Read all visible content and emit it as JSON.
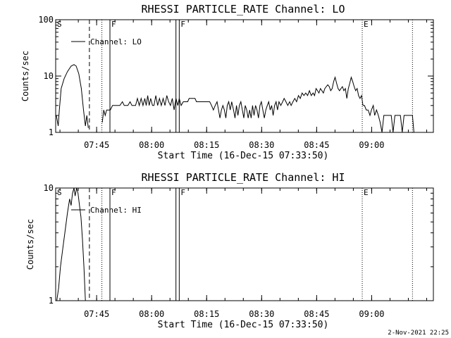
{
  "footer": {
    "timestamp": "2-Nov-2021 22:25"
  },
  "chart_data": [
    {
      "type": "line",
      "title": "RHESSI PARTICLE_RATE Channel: LO",
      "xlabel": "Start Time (16-Dec-15 07:33:50)",
      "ylabel": "Counts/sec",
      "yscale": "log",
      "ylim": [
        1,
        100
      ],
      "xlim_minutes": [
        0,
        103
      ],
      "y_ticks": [
        {
          "value": 1,
          "label": "1"
        },
        {
          "value": 10,
          "label": "10"
        },
        {
          "value": 100,
          "label": "100"
        }
      ],
      "x_ticks": [
        {
          "minutes": 11.17,
          "label": "07:45"
        },
        {
          "minutes": 26.17,
          "label": "08:00"
        },
        {
          "minutes": 41.17,
          "label": "08:15"
        },
        {
          "minutes": 56.17,
          "label": "08:30"
        },
        {
          "minutes": 71.17,
          "label": "08:45"
        },
        {
          "minutes": 86.17,
          "label": "09:00"
        }
      ],
      "legend": {
        "label": "Channel: LO",
        "position": "top-left"
      },
      "markers": [
        {
          "minutes": 0,
          "style": "solid",
          "label": "S"
        },
        {
          "minutes": 9.2,
          "style": "dashed",
          "label": ""
        },
        {
          "minutes": 12.6,
          "style": "dotted",
          "label": ""
        },
        {
          "minutes": 14.8,
          "style": "solid",
          "label": "F"
        },
        {
          "minutes": 32.8,
          "style": "solid",
          "label": ""
        },
        {
          "minutes": 33.7,
          "style": "solid",
          "label": "F"
        },
        {
          "minutes": 83.6,
          "style": "dotted",
          "label": "E"
        },
        {
          "minutes": 97.3,
          "style": "dotted",
          "label": ""
        }
      ],
      "series": [
        {
          "name": "Channel: LO",
          "segments": [
            [
              [
                0.2,
                2.0
              ],
              [
                0.7,
                1.3
              ],
              [
                1.0,
                2.5
              ],
              [
                1.5,
                6.0
              ],
              [
                2.3,
                9.0
              ],
              [
                3.2,
                12.0
              ],
              [
                4.2,
                15.0
              ],
              [
                5.0,
                16.0
              ],
              [
                5.6,
                15.0
              ],
              [
                6.3,
                11.0
              ],
              [
                7.0,
                6.0
              ],
              [
                7.6,
                2.5
              ],
              [
                8.1,
                1.3
              ],
              [
                8.5,
                2.0
              ],
              [
                8.9,
                1.2
              ]
            ],
            [
              [
                12.7,
                1.5
              ],
              [
                13.1,
                2.5
              ],
              [
                13.5,
                2.0
              ],
              [
                13.9,
                2.5
              ],
              [
                14.3,
                2.5
              ],
              [
                14.9,
                2.5
              ],
              [
                15.5,
                3.0
              ],
              [
                17.5,
                3.0
              ],
              [
                18.2,
                3.5
              ],
              [
                18.7,
                3.0
              ],
              [
                19.7,
                3.0
              ],
              [
                20.3,
                3.5
              ],
              [
                20.8,
                3.0
              ],
              [
                21.8,
                3.0
              ],
              [
                22.3,
                4.0
              ],
              [
                22.8,
                3.0
              ],
              [
                23.3,
                4.0
              ],
              [
                23.8,
                3.0
              ],
              [
                24.3,
                4.0
              ],
              [
                24.7,
                3.0
              ],
              [
                25.1,
                4.5
              ],
              [
                25.5,
                3.0
              ],
              [
                25.9,
                4.0
              ],
              [
                26.4,
                3.0
              ],
              [
                26.8,
                3.0
              ],
              [
                27.3,
                4.5
              ],
              [
                27.8,
                3.0
              ],
              [
                28.3,
                4.0
              ],
              [
                28.8,
                3.0
              ],
              [
                29.3,
                4.0
              ],
              [
                29.8,
                3.0
              ],
              [
                30.3,
                4.5
              ],
              [
                30.8,
                3.5
              ],
              [
                31.3,
                3.0
              ],
              [
                31.8,
                4.0
              ],
              [
                32.3,
                2.5
              ],
              [
                32.8,
                4.0
              ],
              [
                33.3,
                3.0
              ],
              [
                33.7,
                4.0
              ],
              [
                34.2,
                3.0
              ],
              [
                34.8,
                3.5
              ],
              [
                36.0,
                3.5
              ],
              [
                36.4,
                4.0
              ],
              [
                38.0,
                4.0
              ],
              [
                38.4,
                3.5
              ],
              [
                42.0,
                3.5
              ],
              [
                42.5,
                3.0
              ],
              [
                43.0,
                2.5
              ],
              [
                43.5,
                3.0
              ],
              [
                44.0,
                3.5
              ],
              [
                44.4,
                2.5
              ],
              [
                44.8,
                1.8
              ],
              [
                45.2,
                2.5
              ],
              [
                45.6,
                3.0
              ],
              [
                46.0,
                2.5
              ],
              [
                46.4,
                1.8
              ],
              [
                46.8,
                3.0
              ],
              [
                47.2,
                3.5
              ],
              [
                47.6,
                2.5
              ],
              [
                48.0,
                3.5
              ],
              [
                48.5,
                2.5
              ],
              [
                48.9,
                1.8
              ],
              [
                49.3,
                3.0
              ],
              [
                49.7,
                2.0
              ],
              [
                50.1,
                3.0
              ],
              [
                50.5,
                3.5
              ],
              [
                50.9,
                2.5
              ],
              [
                51.3,
                1.8
              ],
              [
                51.7,
                3.0
              ],
              [
                52.1,
                2.5
              ],
              [
                52.5,
                1.8
              ],
              [
                52.9,
                2.5
              ],
              [
                53.3,
                1.8
              ],
              [
                53.7,
                3.0
              ],
              [
                54.1,
                2.0
              ],
              [
                54.5,
                3.0
              ],
              [
                54.9,
                2.5
              ],
              [
                55.3,
                1.8
              ],
              [
                55.7,
                3.0
              ],
              [
                56.1,
                3.5
              ],
              [
                56.5,
                2.5
              ],
              [
                56.9,
                1.8
              ],
              [
                57.3,
                2.5
              ],
              [
                57.7,
                3.0
              ],
              [
                58.1,
                3.5
              ],
              [
                58.5,
                2.5
              ],
              [
                58.9,
                3.0
              ],
              [
                59.3,
                2.0
              ],
              [
                59.7,
                3.0
              ],
              [
                60.1,
                3.5
              ],
              [
                60.5,
                2.5
              ],
              [
                60.9,
                3.5
              ],
              [
                61.4,
                3.0
              ],
              [
                61.9,
                3.5
              ],
              [
                62.3,
                4.0
              ],
              [
                62.8,
                3.5
              ],
              [
                63.3,
                3.0
              ],
              [
                63.8,
                3.5
              ],
              [
                64.2,
                3.0
              ],
              [
                64.7,
                3.5
              ],
              [
                65.2,
                4.0
              ],
              [
                65.7,
                3.5
              ],
              [
                66.2,
                4.5
              ],
              [
                66.7,
                4.0
              ],
              [
                67.2,
                5.0
              ],
              [
                67.7,
                4.5
              ],
              [
                68.2,
                5.0
              ],
              [
                68.7,
                4.5
              ],
              [
                69.2,
                5.5
              ],
              [
                69.7,
                4.5
              ],
              [
                70.2,
                5.0
              ],
              [
                70.6,
                4.5
              ],
              [
                71.0,
                6.0
              ],
              [
                71.4,
                5.5
              ],
              [
                71.8,
                5.0
              ],
              [
                72.2,
                6.0
              ],
              [
                72.6,
                5.5
              ],
              [
                73.0,
                5.0
              ],
              [
                73.4,
                6.0
              ],
              [
                73.8,
                6.5
              ],
              [
                74.2,
                7.0
              ],
              [
                74.6,
                6.5
              ],
              [
                75.0,
                5.5
              ],
              [
                75.4,
                6.0
              ],
              [
                75.8,
                8.0
              ],
              [
                76.2,
                9.5
              ],
              [
                76.6,
                7.5
              ],
              [
                77.0,
                6.0
              ],
              [
                77.4,
                5.5
              ],
              [
                77.8,
                6.0
              ],
              [
                78.2,
                6.5
              ],
              [
                78.6,
                5.5
              ],
              [
                79.0,
                6.0
              ],
              [
                79.4,
                4.0
              ],
              [
                79.8,
                6.0
              ],
              [
                80.2,
                7.5
              ],
              [
                80.6,
                9.5
              ],
              [
                81.0,
                8.0
              ],
              [
                81.4,
                6.5
              ],
              [
                81.8,
                5.5
              ],
              [
                82.2,
                6.0
              ],
              [
                82.6,
                4.5
              ],
              [
                83.0,
                4.0
              ],
              [
                83.4,
                4.5
              ],
              [
                83.8,
                3.0
              ],
              [
                84.2,
                3.0
              ],
              [
                84.7,
                2.5
              ],
              [
                85.2,
                2.5
              ],
              [
                85.7,
                2.0
              ],
              [
                86.1,
                2.5
              ],
              [
                86.6,
                3.0
              ],
              [
                87.0,
                2.0
              ],
              [
                87.5,
                2.5
              ],
              [
                88.0,
                2.0
              ],
              [
                88.5,
                1.5
              ],
              [
                89.0,
                1.0
              ],
              [
                89.5,
                2.0
              ],
              [
                91.5,
                2.0
              ],
              [
                92.0,
                1.0
              ],
              [
                92.5,
                2.0
              ],
              [
                94.0,
                2.0
              ],
              [
                94.5,
                1.0
              ],
              [
                95.0,
                2.0
              ],
              [
                97.3,
                2.0
              ],
              [
                97.7,
                1.0
              ]
            ]
          ]
        }
      ]
    },
    {
      "type": "line",
      "title": "RHESSI PARTICLE_RATE Channel: HI",
      "xlabel": "Start Time (16-Dec-15 07:33:50)",
      "ylabel": "Counts/sec",
      "yscale": "log",
      "ylim": [
        1,
        10
      ],
      "xlim_minutes": [
        0,
        103
      ],
      "y_ticks": [
        {
          "value": 1,
          "label": "1"
        },
        {
          "value": 10,
          "label": "10"
        }
      ],
      "x_ticks": [
        {
          "minutes": 11.17,
          "label": "07:45"
        },
        {
          "minutes": 26.17,
          "label": "08:00"
        },
        {
          "minutes": 41.17,
          "label": "08:15"
        },
        {
          "minutes": 56.17,
          "label": "08:30"
        },
        {
          "minutes": 71.17,
          "label": "08:45"
        },
        {
          "minutes": 86.17,
          "label": "09:00"
        }
      ],
      "legend": {
        "label": "Channel: HI",
        "position": "top-left"
      },
      "markers": [
        {
          "minutes": 0,
          "style": "solid",
          "label": "S"
        },
        {
          "minutes": 9.2,
          "style": "dashed",
          "label": ""
        },
        {
          "minutes": 12.6,
          "style": "dotted",
          "label": ""
        },
        {
          "minutes": 14.8,
          "style": "solid",
          "label": "F"
        },
        {
          "minutes": 32.8,
          "style": "solid",
          "label": ""
        },
        {
          "minutes": 33.7,
          "style": "solid",
          "label": "F"
        },
        {
          "minutes": 83.6,
          "style": "dotted",
          "label": "E"
        },
        {
          "minutes": 97.3,
          "style": "dotted",
          "label": ""
        }
      ],
      "series": [
        {
          "name": "Channel: HI",
          "segments": [
            [
              [
                0.3,
                1.0
              ],
              [
                0.8,
                1.3
              ],
              [
                1.3,
                2.0
              ],
              [
                2.0,
                3.0
              ],
              [
                2.7,
                4.5
              ],
              [
                3.2,
                6.0
              ],
              [
                3.8,
                8.0
              ],
              [
                4.2,
                7.0
              ],
              [
                4.6,
                9.0
              ],
              [
                5.0,
                10.0
              ],
              [
                5.3,
                8.5
              ],
              [
                5.7,
                10.0
              ],
              [
                6.1,
                9.0
              ],
              [
                6.5,
                7.0
              ],
              [
                6.9,
                5.5
              ],
              [
                7.3,
                3.5
              ],
              [
                7.7,
                2.0
              ],
              [
                8.1,
                1.0
              ]
            ]
          ]
        }
      ]
    }
  ]
}
